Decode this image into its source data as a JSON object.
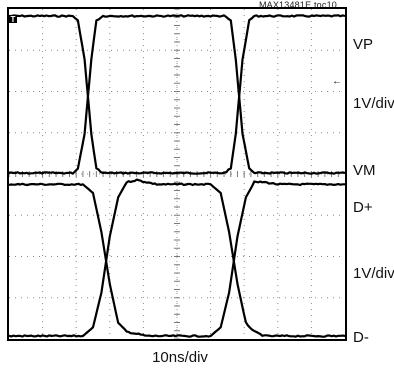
{
  "figure": {
    "ref": "MAX13481E toc10",
    "x_scale": "10ns/div",
    "trigger_marker": "T",
    "ground_marker": "←"
  },
  "chart_data": [
    {
      "type": "line",
      "panel": "top",
      "y_top_label": "VP",
      "y_scale_label": "1V/div",
      "y_bottom_label": "VM",
      "x_units": "ns",
      "x_per_div": 10,
      "y_per_div": 1,
      "x_divisions": 10,
      "y_divisions": 4,
      "grid": true,
      "series": [
        {
          "x": [
            0,
            19.0,
            20.5,
            22.5,
            24.5,
            26.0,
            28.0,
            64.0,
            66.0,
            67.5,
            69.5,
            71.5,
            73.0,
            100
          ],
          "y": [
            3.6,
            3.6,
            3.5,
            2.6,
            0.9,
            0.1,
            0.0,
            0.0,
            0.1,
            0.9,
            2.6,
            3.5,
            3.6,
            3.6
          ]
        },
        {
          "x": [
            0,
            19.0,
            20.5,
            22.5,
            24.5,
            26.0,
            28.0,
            64.0,
            66.0,
            67.5,
            69.5,
            71.5,
            73.0,
            100
          ],
          "y": [
            0.0,
            0.0,
            0.1,
            0.9,
            2.6,
            3.5,
            3.6,
            3.6,
            3.5,
            2.6,
            0.9,
            0.1,
            0.0,
            0.0
          ]
        }
      ]
    },
    {
      "type": "line",
      "panel": "bottom",
      "y_top_label": "D+",
      "y_scale_label": "1V/div",
      "y_bottom_label": "D-",
      "x_units": "ns",
      "x_per_div": 10,
      "y_per_div": 1,
      "x_divisions": 10,
      "y_divisions": 4,
      "grid": true,
      "series": [
        {
          "x": [
            0,
            22.0,
            25.0,
            27.5,
            30.0,
            32.5,
            35.0,
            38.0,
            41.0,
            60.0,
            63.0,
            65.5,
            68.0,
            70.5,
            73.0,
            76.0,
            80.0,
            100
          ],
          "y": [
            3.5,
            3.5,
            3.3,
            2.4,
            1.2,
            0.3,
            0.1,
            0.05,
            0.0,
            0.0,
            0.2,
            1.0,
            2.3,
            3.2,
            3.55,
            3.55,
            3.5,
            3.5
          ]
        },
        {
          "x": [
            0,
            22.0,
            25.0,
            27.5,
            30.0,
            32.5,
            35.0,
            38.0,
            41.0,
            44.0,
            60.0,
            63.0,
            65.5,
            68.0,
            70.5,
            73.0,
            76.0,
            100
          ],
          "y": [
            0.0,
            0.0,
            0.2,
            1.0,
            2.3,
            3.2,
            3.55,
            3.6,
            3.55,
            3.5,
            3.5,
            3.3,
            2.4,
            1.2,
            0.3,
            0.1,
            0.0,
            0.0
          ]
        }
      ]
    }
  ]
}
